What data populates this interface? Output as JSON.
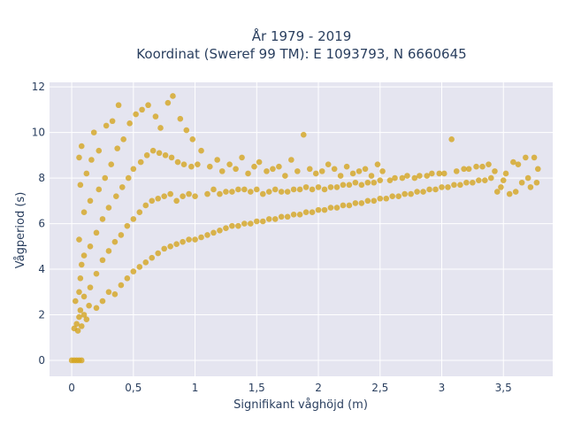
{
  "chart_data": {
    "type": "scatter",
    "title_line1": "År 1979 - 2019",
    "title_line2": "Koordinat (Sweref 99 TM): E 1093793, N 6660645",
    "xlabel": "Signifikant våghöjd (m)",
    "ylabel": "Vågperiod (s)",
    "xlim": [
      -0.18,
      3.9
    ],
    "ylim": [
      -0.7,
      12.2
    ],
    "x_ticks": [
      {
        "value": 0,
        "label": "0"
      },
      {
        "value": 0.5,
        "label": "0,5"
      },
      {
        "value": 1,
        "label": "1"
      },
      {
        "value": 1.5,
        "label": "1,5"
      },
      {
        "value": 2,
        "label": "2"
      },
      {
        "value": 2.5,
        "label": "2,5"
      },
      {
        "value": 3,
        "label": "3"
      },
      {
        "value": 3.5,
        "label": "3,5"
      }
    ],
    "y_ticks": [
      {
        "value": 0,
        "label": "0"
      },
      {
        "value": 2,
        "label": "2"
      },
      {
        "value": 4,
        "label": "4"
      },
      {
        "value": 6,
        "label": "6"
      },
      {
        "value": 8,
        "label": "8"
      },
      {
        "value": 10,
        "label": "10"
      },
      {
        "value": 12,
        "label": "12"
      }
    ],
    "grid": true,
    "colors": {
      "marker": "#D4A520",
      "plot_bg": "#E5E5F0",
      "grid": "#ffffff",
      "text": "#2a3f5f"
    },
    "points": [
      [
        0.0,
        0.0
      ],
      [
        0.02,
        0.0
      ],
      [
        0.04,
        0.0
      ],
      [
        0.06,
        0.0
      ],
      [
        0.08,
        0.0
      ],
      [
        0.02,
        1.4
      ],
      [
        0.04,
        1.6
      ],
      [
        0.05,
        1.3
      ],
      [
        0.06,
        1.9
      ],
      [
        0.07,
        2.2
      ],
      [
        0.08,
        1.5
      ],
      [
        0.03,
        2.6
      ],
      [
        0.06,
        3.0
      ],
      [
        0.07,
        3.6
      ],
      [
        0.08,
        4.2
      ],
      [
        0.06,
        5.3
      ],
      [
        0.07,
        7.7
      ],
      [
        0.06,
        8.9
      ],
      [
        0.08,
        9.4
      ],
      [
        0.1,
        2.0
      ],
      [
        0.1,
        2.8
      ],
      [
        0.1,
        4.6
      ],
      [
        0.1,
        6.5
      ],
      [
        0.12,
        8.2
      ],
      [
        0.12,
        1.8
      ],
      [
        0.14,
        2.4
      ],
      [
        0.15,
        3.2
      ],
      [
        0.15,
        5.0
      ],
      [
        0.15,
        7.0
      ],
      [
        0.16,
        8.8
      ],
      [
        0.18,
        10.0
      ],
      [
        0.2,
        2.3
      ],
      [
        0.2,
        3.8
      ],
      [
        0.2,
        5.6
      ],
      [
        0.22,
        7.5
      ],
      [
        0.22,
        9.2
      ],
      [
        0.25,
        2.6
      ],
      [
        0.25,
        4.4
      ],
      [
        0.25,
        6.2
      ],
      [
        0.27,
        8.0
      ],
      [
        0.28,
        10.3
      ],
      [
        0.3,
        3.0
      ],
      [
        0.3,
        4.8
      ],
      [
        0.3,
        6.7
      ],
      [
        0.32,
        8.6
      ],
      [
        0.33,
        10.5
      ],
      [
        0.35,
        2.9
      ],
      [
        0.35,
        5.2
      ],
      [
        0.36,
        7.2
      ],
      [
        0.37,
        9.3
      ],
      [
        0.38,
        11.2
      ],
      [
        0.4,
        3.3
      ],
      [
        0.4,
        5.5
      ],
      [
        0.41,
        7.6
      ],
      [
        0.42,
        9.7
      ],
      [
        0.45,
        3.6
      ],
      [
        0.45,
        5.9
      ],
      [
        0.46,
        8.0
      ],
      [
        0.47,
        10.4
      ],
      [
        0.5,
        3.9
      ],
      [
        0.5,
        6.2
      ],
      [
        0.5,
        8.4
      ],
      [
        0.52,
        10.8
      ],
      [
        0.55,
        4.1
      ],
      [
        0.55,
        6.5
      ],
      [
        0.56,
        8.7
      ],
      [
        0.57,
        11.0
      ],
      [
        0.6,
        4.3
      ],
      [
        0.6,
        6.8
      ],
      [
        0.61,
        9.0
      ],
      [
        0.62,
        11.2
      ],
      [
        0.65,
        4.5
      ],
      [
        0.65,
        7.0
      ],
      [
        0.66,
        9.2
      ],
      [
        0.68,
        10.7
      ],
      [
        0.7,
        4.7
      ],
      [
        0.7,
        7.1
      ],
      [
        0.71,
        9.1
      ],
      [
        0.72,
        10.2
      ],
      [
        0.75,
        4.9
      ],
      [
        0.75,
        7.2
      ],
      [
        0.76,
        9.0
      ],
      [
        0.78,
        11.3
      ],
      [
        0.8,
        5.0
      ],
      [
        0.8,
        7.3
      ],
      [
        0.81,
        8.9
      ],
      [
        0.82,
        11.6
      ],
      [
        0.85,
        5.1
      ],
      [
        0.85,
        7.0
      ],
      [
        0.86,
        8.7
      ],
      [
        0.88,
        10.6
      ],
      [
        0.9,
        5.2
      ],
      [
        0.9,
        7.2
      ],
      [
        0.91,
        8.6
      ],
      [
        0.93,
        10.1
      ],
      [
        0.95,
        5.3
      ],
      [
        0.95,
        7.3
      ],
      [
        0.97,
        8.5
      ],
      [
        0.98,
        9.7
      ],
      [
        1.0,
        5.3
      ],
      [
        1.0,
        7.2
      ],
      [
        1.02,
        8.6
      ],
      [
        1.05,
        9.2
      ],
      [
        1.05,
        5.4
      ],
      [
        1.1,
        5.5
      ],
      [
        1.1,
        7.3
      ],
      [
        1.12,
        8.5
      ],
      [
        1.15,
        5.6
      ],
      [
        1.15,
        7.5
      ],
      [
        1.18,
        8.8
      ],
      [
        1.2,
        5.7
      ],
      [
        1.2,
        7.3
      ],
      [
        1.22,
        8.3
      ],
      [
        1.25,
        5.8
      ],
      [
        1.25,
        7.4
      ],
      [
        1.28,
        8.6
      ],
      [
        1.3,
        5.9
      ],
      [
        1.3,
        7.4
      ],
      [
        1.33,
        8.4
      ],
      [
        1.35,
        5.9
      ],
      [
        1.35,
        7.5
      ],
      [
        1.38,
        8.9
      ],
      [
        1.4,
        6.0
      ],
      [
        1.4,
        7.5
      ],
      [
        1.43,
        8.2
      ],
      [
        1.45,
        6.0
      ],
      [
        1.45,
        7.4
      ],
      [
        1.48,
        8.5
      ],
      [
        1.5,
        6.1
      ],
      [
        1.5,
        7.5
      ],
      [
        1.52,
        8.7
      ],
      [
        1.55,
        6.1
      ],
      [
        1.55,
        7.3
      ],
      [
        1.58,
        8.3
      ],
      [
        1.6,
        6.2
      ],
      [
        1.6,
        7.4
      ],
      [
        1.63,
        8.4
      ],
      [
        1.65,
        6.2
      ],
      [
        1.65,
        7.5
      ],
      [
        1.68,
        8.5
      ],
      [
        1.7,
        6.3
      ],
      [
        1.7,
        7.4
      ],
      [
        1.73,
        8.1
      ],
      [
        1.75,
        6.3
      ],
      [
        1.75,
        7.4
      ],
      [
        1.78,
        8.8
      ],
      [
        1.8,
        6.4
      ],
      [
        1.8,
        7.5
      ],
      [
        1.83,
        8.3
      ],
      [
        1.85,
        6.4
      ],
      [
        1.85,
        7.5
      ],
      [
        1.88,
        9.9
      ],
      [
        1.9,
        6.5
      ],
      [
        1.9,
        7.6
      ],
      [
        1.93,
        8.4
      ],
      [
        1.95,
        6.5
      ],
      [
        1.95,
        7.5
      ],
      [
        1.98,
        8.2
      ],
      [
        2.0,
        6.6
      ],
      [
        2.0,
        7.6
      ],
      [
        2.03,
        8.3
      ],
      [
        2.05,
        6.6
      ],
      [
        2.05,
        7.5
      ],
      [
        2.08,
        8.6
      ],
      [
        2.1,
        6.7
      ],
      [
        2.1,
        7.6
      ],
      [
        2.13,
        8.4
      ],
      [
        2.15,
        6.7
      ],
      [
        2.15,
        7.6
      ],
      [
        2.18,
        8.1
      ],
      [
        2.2,
        6.8
      ],
      [
        2.2,
        7.7
      ],
      [
        2.23,
        8.5
      ],
      [
        2.25,
        6.8
      ],
      [
        2.25,
        7.7
      ],
      [
        2.28,
        8.2
      ],
      [
        2.3,
        6.9
      ],
      [
        2.3,
        7.8
      ],
      [
        2.33,
        8.3
      ],
      [
        2.35,
        6.9
      ],
      [
        2.35,
        7.7
      ],
      [
        2.38,
        8.4
      ],
      [
        2.4,
        7.0
      ],
      [
        2.4,
        7.8
      ],
      [
        2.43,
        8.1
      ],
      [
        2.45,
        7.0
      ],
      [
        2.45,
        7.8
      ],
      [
        2.48,
        8.6
      ],
      [
        2.5,
        7.1
      ],
      [
        2.5,
        7.9
      ],
      [
        2.52,
        8.3
      ],
      [
        2.55,
        7.1
      ],
      [
        2.58,
        7.9
      ],
      [
        2.6,
        7.2
      ],
      [
        2.62,
        8.0
      ],
      [
        2.65,
        7.2
      ],
      [
        2.68,
        8.0
      ],
      [
        2.7,
        7.3
      ],
      [
        2.72,
        8.1
      ],
      [
        2.75,
        7.3
      ],
      [
        2.78,
        8.0
      ],
      [
        2.8,
        7.4
      ],
      [
        2.82,
        8.1
      ],
      [
        2.85,
        7.4
      ],
      [
        2.88,
        8.1
      ],
      [
        2.9,
        7.5
      ],
      [
        2.92,
        8.2
      ],
      [
        2.95,
        7.5
      ],
      [
        2.98,
        8.2
      ],
      [
        3.0,
        7.6
      ],
      [
        3.02,
        8.2
      ],
      [
        3.05,
        7.6
      ],
      [
        3.08,
        9.7
      ],
      [
        3.1,
        7.7
      ],
      [
        3.12,
        8.3
      ],
      [
        3.15,
        7.7
      ],
      [
        3.18,
        8.4
      ],
      [
        3.2,
        7.8
      ],
      [
        3.22,
        8.4
      ],
      [
        3.25,
        7.8
      ],
      [
        3.28,
        8.5
      ],
      [
        3.3,
        7.9
      ],
      [
        3.33,
        8.5
      ],
      [
        3.35,
        7.9
      ],
      [
        3.38,
        8.6
      ],
      [
        3.4,
        8.0
      ],
      [
        3.43,
        8.3
      ],
      [
        3.45,
        7.4
      ],
      [
        3.48,
        7.6
      ],
      [
        3.5,
        7.9
      ],
      [
        3.52,
        8.2
      ],
      [
        3.55,
        7.3
      ],
      [
        3.58,
        8.7
      ],
      [
        3.6,
        7.4
      ],
      [
        3.62,
        8.6
      ],
      [
        3.65,
        7.8
      ],
      [
        3.68,
        8.9
      ],
      [
        3.7,
        8.0
      ],
      [
        3.72,
        7.6
      ],
      [
        3.75,
        8.9
      ],
      [
        3.77,
        7.8
      ],
      [
        3.78,
        8.4
      ]
    ]
  }
}
